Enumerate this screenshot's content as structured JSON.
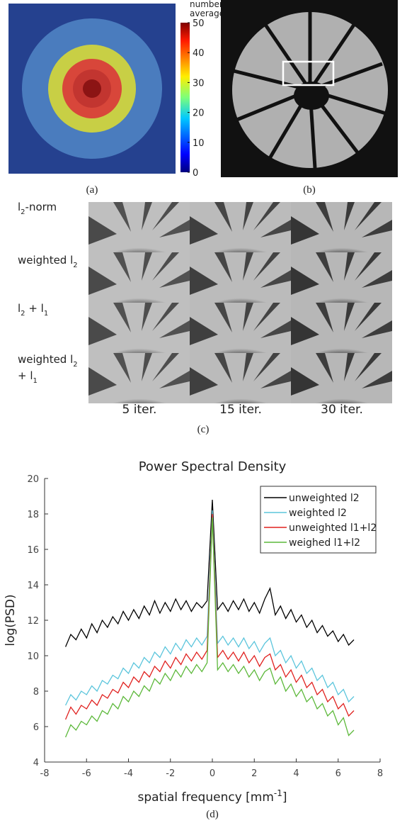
{
  "panel_a": {
    "caption": "(a)",
    "colorbar": {
      "label": [
        "number of",
        "averages"
      ],
      "lim": [
        0,
        50
      ],
      "ticks": [
        0,
        10,
        20,
        30,
        40,
        50
      ]
    }
  },
  "panel_b": {
    "caption": "(b)"
  },
  "panel_c": {
    "caption": "(c)",
    "row_labels": [
      [
        "l",
        "2",
        "-norm"
      ],
      [
        "weighted l",
        "2"
      ],
      [
        "l",
        "2",
        " + l",
        "1"
      ],
      [
        "weighted l",
        "2"
      ],
      [
        "+ l",
        "1"
      ]
    ],
    "column_labels": [
      "5 iter.",
      "15 iter.",
      "30 iter."
    ]
  },
  "chart_data": {
    "type": "line",
    "caption": "(d)",
    "title": "Power Spectral Density",
    "y_label": "log(PSD)",
    "x_label": [
      "spatial frequency [mm",
      "-1",
      "]"
    ],
    "xlim": [
      -8,
      8
    ],
    "xticks": [
      -8,
      -6,
      -4,
      -2,
      0,
      2,
      4,
      6,
      8
    ],
    "ylim": [
      4,
      20
    ],
    "yticks": [
      4,
      6,
      8,
      10,
      12,
      14,
      16,
      18,
      20
    ],
    "legend": "top-right",
    "x": [
      -7,
      -6.75,
      -6.5,
      -6.25,
      -6,
      -5.75,
      -5.5,
      -5.25,
      -5,
      -4.75,
      -4.5,
      -4.25,
      -4,
      -3.75,
      -3.5,
      -3.25,
      -3,
      -2.75,
      -2.5,
      -2.25,
      -2,
      -1.75,
      -1.5,
      -1.25,
      -1,
      -0.75,
      -0.5,
      -0.25,
      0,
      0.25,
      0.5,
      0.75,
      1,
      1.25,
      1.5,
      1.75,
      2,
      2.25,
      2.5,
      2.75,
      3,
      3.25,
      3.5,
      3.75,
      4,
      4.25,
      4.5,
      4.75,
      5,
      5.25,
      5.5,
      5.75,
      6,
      6.25,
      6.5,
      6.75
    ],
    "series": [
      {
        "name": "unweighted l2",
        "color": "#000000",
        "values": [
          10.5,
          11.2,
          10.9,
          11.5,
          11.0,
          11.8,
          11.3,
          12.0,
          11.6,
          12.2,
          11.8,
          12.5,
          12.0,
          12.6,
          12.1,
          12.8,
          12.3,
          13.1,
          12.4,
          13.0,
          12.5,
          13.2,
          12.6,
          13.1,
          12.5,
          13.0,
          12.7,
          13.1,
          18.8,
          12.6,
          13.0,
          12.5,
          13.1,
          12.6,
          13.2,
          12.5,
          13.0,
          12.4,
          13.2,
          13.8,
          12.3,
          12.8,
          12.1,
          12.6,
          11.9,
          12.3,
          11.6,
          12.0,
          11.3,
          11.7,
          11.1,
          11.4,
          10.8,
          11.2,
          10.6,
          10.9
        ]
      },
      {
        "name": "weighted l2",
        "color": "#5bc5dc",
        "values": [
          7.2,
          7.8,
          7.5,
          8.0,
          7.8,
          8.3,
          8.0,
          8.6,
          8.4,
          8.9,
          8.7,
          9.3,
          9.0,
          9.6,
          9.3,
          9.9,
          9.6,
          10.2,
          9.9,
          10.5,
          10.1,
          10.7,
          10.3,
          10.9,
          10.5,
          11.0,
          10.6,
          11.1,
          18.2,
          10.7,
          11.1,
          10.6,
          11.0,
          10.5,
          11.0,
          10.4,
          10.8,
          10.2,
          10.7,
          11.0,
          10.0,
          10.3,
          9.6,
          10.0,
          9.3,
          9.7,
          9.0,
          9.3,
          8.6,
          8.9,
          8.2,
          8.5,
          7.8,
          8.1,
          7.4,
          7.7
        ]
      },
      {
        "name": "unweighted l1+l2",
        "color": "#e0201e",
        "values": [
          6.4,
          7.1,
          6.7,
          7.2,
          7.0,
          7.5,
          7.2,
          7.8,
          7.6,
          8.1,
          7.9,
          8.5,
          8.2,
          8.8,
          8.5,
          9.1,
          8.8,
          9.4,
          9.1,
          9.7,
          9.3,
          9.9,
          9.5,
          10.1,
          9.7,
          10.2,
          9.8,
          10.3,
          18.0,
          9.9,
          10.3,
          9.8,
          10.2,
          9.7,
          10.2,
          9.6,
          10.0,
          9.4,
          9.9,
          10.1,
          9.2,
          9.5,
          8.8,
          9.2,
          8.5,
          8.9,
          8.2,
          8.5,
          7.8,
          8.1,
          7.4,
          7.7,
          7.0,
          7.3,
          6.6,
          6.9
        ]
      },
      {
        "name": "weighed l1+l2",
        "color": "#5cb83a",
        "values": [
          5.4,
          6.1,
          5.8,
          6.3,
          6.1,
          6.6,
          6.3,
          6.9,
          6.7,
          7.3,
          7.0,
          7.7,
          7.4,
          8.0,
          7.7,
          8.3,
          8.0,
          8.7,
          8.4,
          9.0,
          8.6,
          9.2,
          8.8,
          9.4,
          9.0,
          9.5,
          9.1,
          9.6,
          17.8,
          9.2,
          9.6,
          9.1,
          9.5,
          9.0,
          9.4,
          8.8,
          9.2,
          8.6,
          9.1,
          9.3,
          8.4,
          8.8,
          8.0,
          8.4,
          7.7,
          8.1,
          7.4,
          7.7,
          7.0,
          7.3,
          6.6,
          6.9,
          6.1,
          6.5,
          5.5,
          5.8
        ]
      }
    ]
  }
}
